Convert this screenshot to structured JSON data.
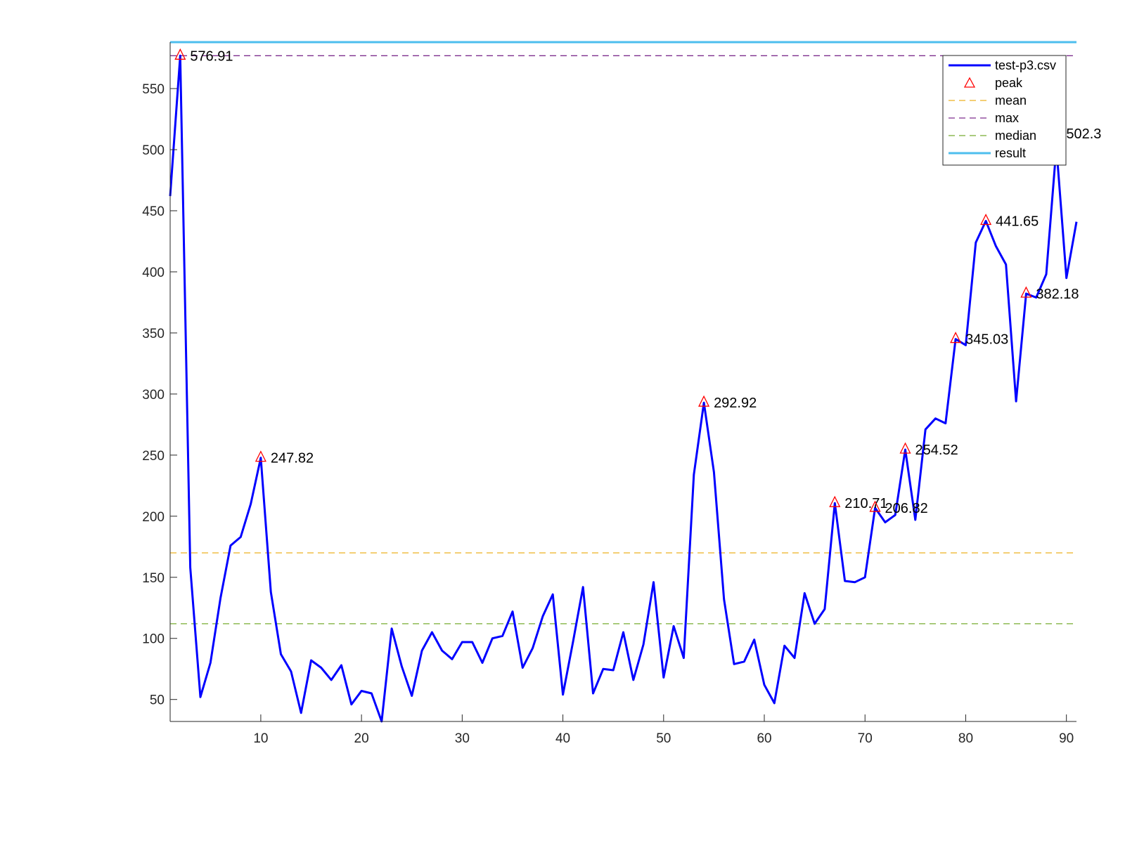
{
  "chart_data": {
    "type": "line",
    "xlim": [
      1,
      91
    ],
    "ylim": [
      32,
      588
    ],
    "x_ticks": [
      10,
      20,
      30,
      40,
      50,
      60,
      70,
      80,
      90
    ],
    "y_ticks": [
      50,
      100,
      150,
      200,
      250,
      300,
      350,
      400,
      450,
      500,
      550
    ],
    "grid": false,
    "legend_position": "top-right",
    "series": [
      {
        "name": "test-p3.csv",
        "color": "#0000ff",
        "style": "solid",
        "x": [
          1,
          2,
          3,
          4,
          5,
          6,
          7,
          8,
          9,
          10,
          11,
          12,
          13,
          14,
          15,
          16,
          17,
          18,
          19,
          20,
          21,
          22,
          23,
          24,
          25,
          26,
          27,
          28,
          29,
          30,
          31,
          32,
          33,
          34,
          35,
          36,
          37,
          38,
          39,
          40,
          41,
          42,
          43,
          44,
          45,
          46,
          47,
          48,
          49,
          50,
          51,
          52,
          53,
          54,
          55,
          56,
          57,
          58,
          59,
          60,
          61,
          62,
          63,
          64,
          65,
          66,
          67,
          68,
          69,
          70,
          71,
          72,
          73,
          74,
          75,
          76,
          77,
          78,
          79,
          80,
          81,
          82,
          83,
          84,
          85,
          86,
          87,
          88,
          89,
          90,
          91
        ],
        "y": [
          462,
          576.91,
          158,
          52,
          80,
          133,
          176,
          183,
          210,
          247.82,
          138,
          87,
          73,
          39,
          82,
          76,
          66,
          78,
          46,
          57,
          55,
          32,
          108,
          77,
          53,
          90,
          105,
          90,
          83,
          97,
          97,
          80,
          100,
          102,
          122,
          76,
          92,
          118,
          136,
          54,
          97,
          142,
          55,
          75,
          74,
          105,
          66,
          95,
          146,
          68,
          110,
          84,
          234,
          292.92,
          236,
          132,
          79,
          81,
          99,
          62,
          47,
          94,
          84,
          137,
          112,
          124,
          210.71,
          147,
          146,
          150,
          206.82,
          195,
          201,
          254.52,
          197,
          271,
          280,
          276,
          345.03,
          340,
          424,
          441.65,
          421,
          406,
          294,
          382.18,
          379,
          398,
          502.3,
          395,
          441
        ]
      },
      {
        "name": "peak",
        "color": "#ff0000",
        "marker": "triangle",
        "x": [
          2,
          10,
          54,
          67,
          71,
          74,
          79,
          82,
          86,
          89
        ],
        "y": [
          576.91,
          247.82,
          292.92,
          210.71,
          206.82,
          254.52,
          345.03,
          441.65,
          382.18,
          502.3
        ],
        "labels": [
          "576.91",
          "247.82",
          "292.92",
          "210.71",
          "206.82",
          "254.52",
          "345.03",
          "441.65",
          "382.18",
          "502.3"
        ]
      },
      {
        "name": "mean",
        "color": "#edb120",
        "style": "dashed",
        "y": 170
      },
      {
        "name": "max",
        "color": "#7e2f8e",
        "style": "dashed",
        "y": 576.91
      },
      {
        "name": "median",
        "color": "#77ac30",
        "style": "dashed",
        "y": 112
      },
      {
        "name": "result",
        "color": "#4dbeee",
        "style": "solid",
        "y": 588
      }
    ]
  }
}
